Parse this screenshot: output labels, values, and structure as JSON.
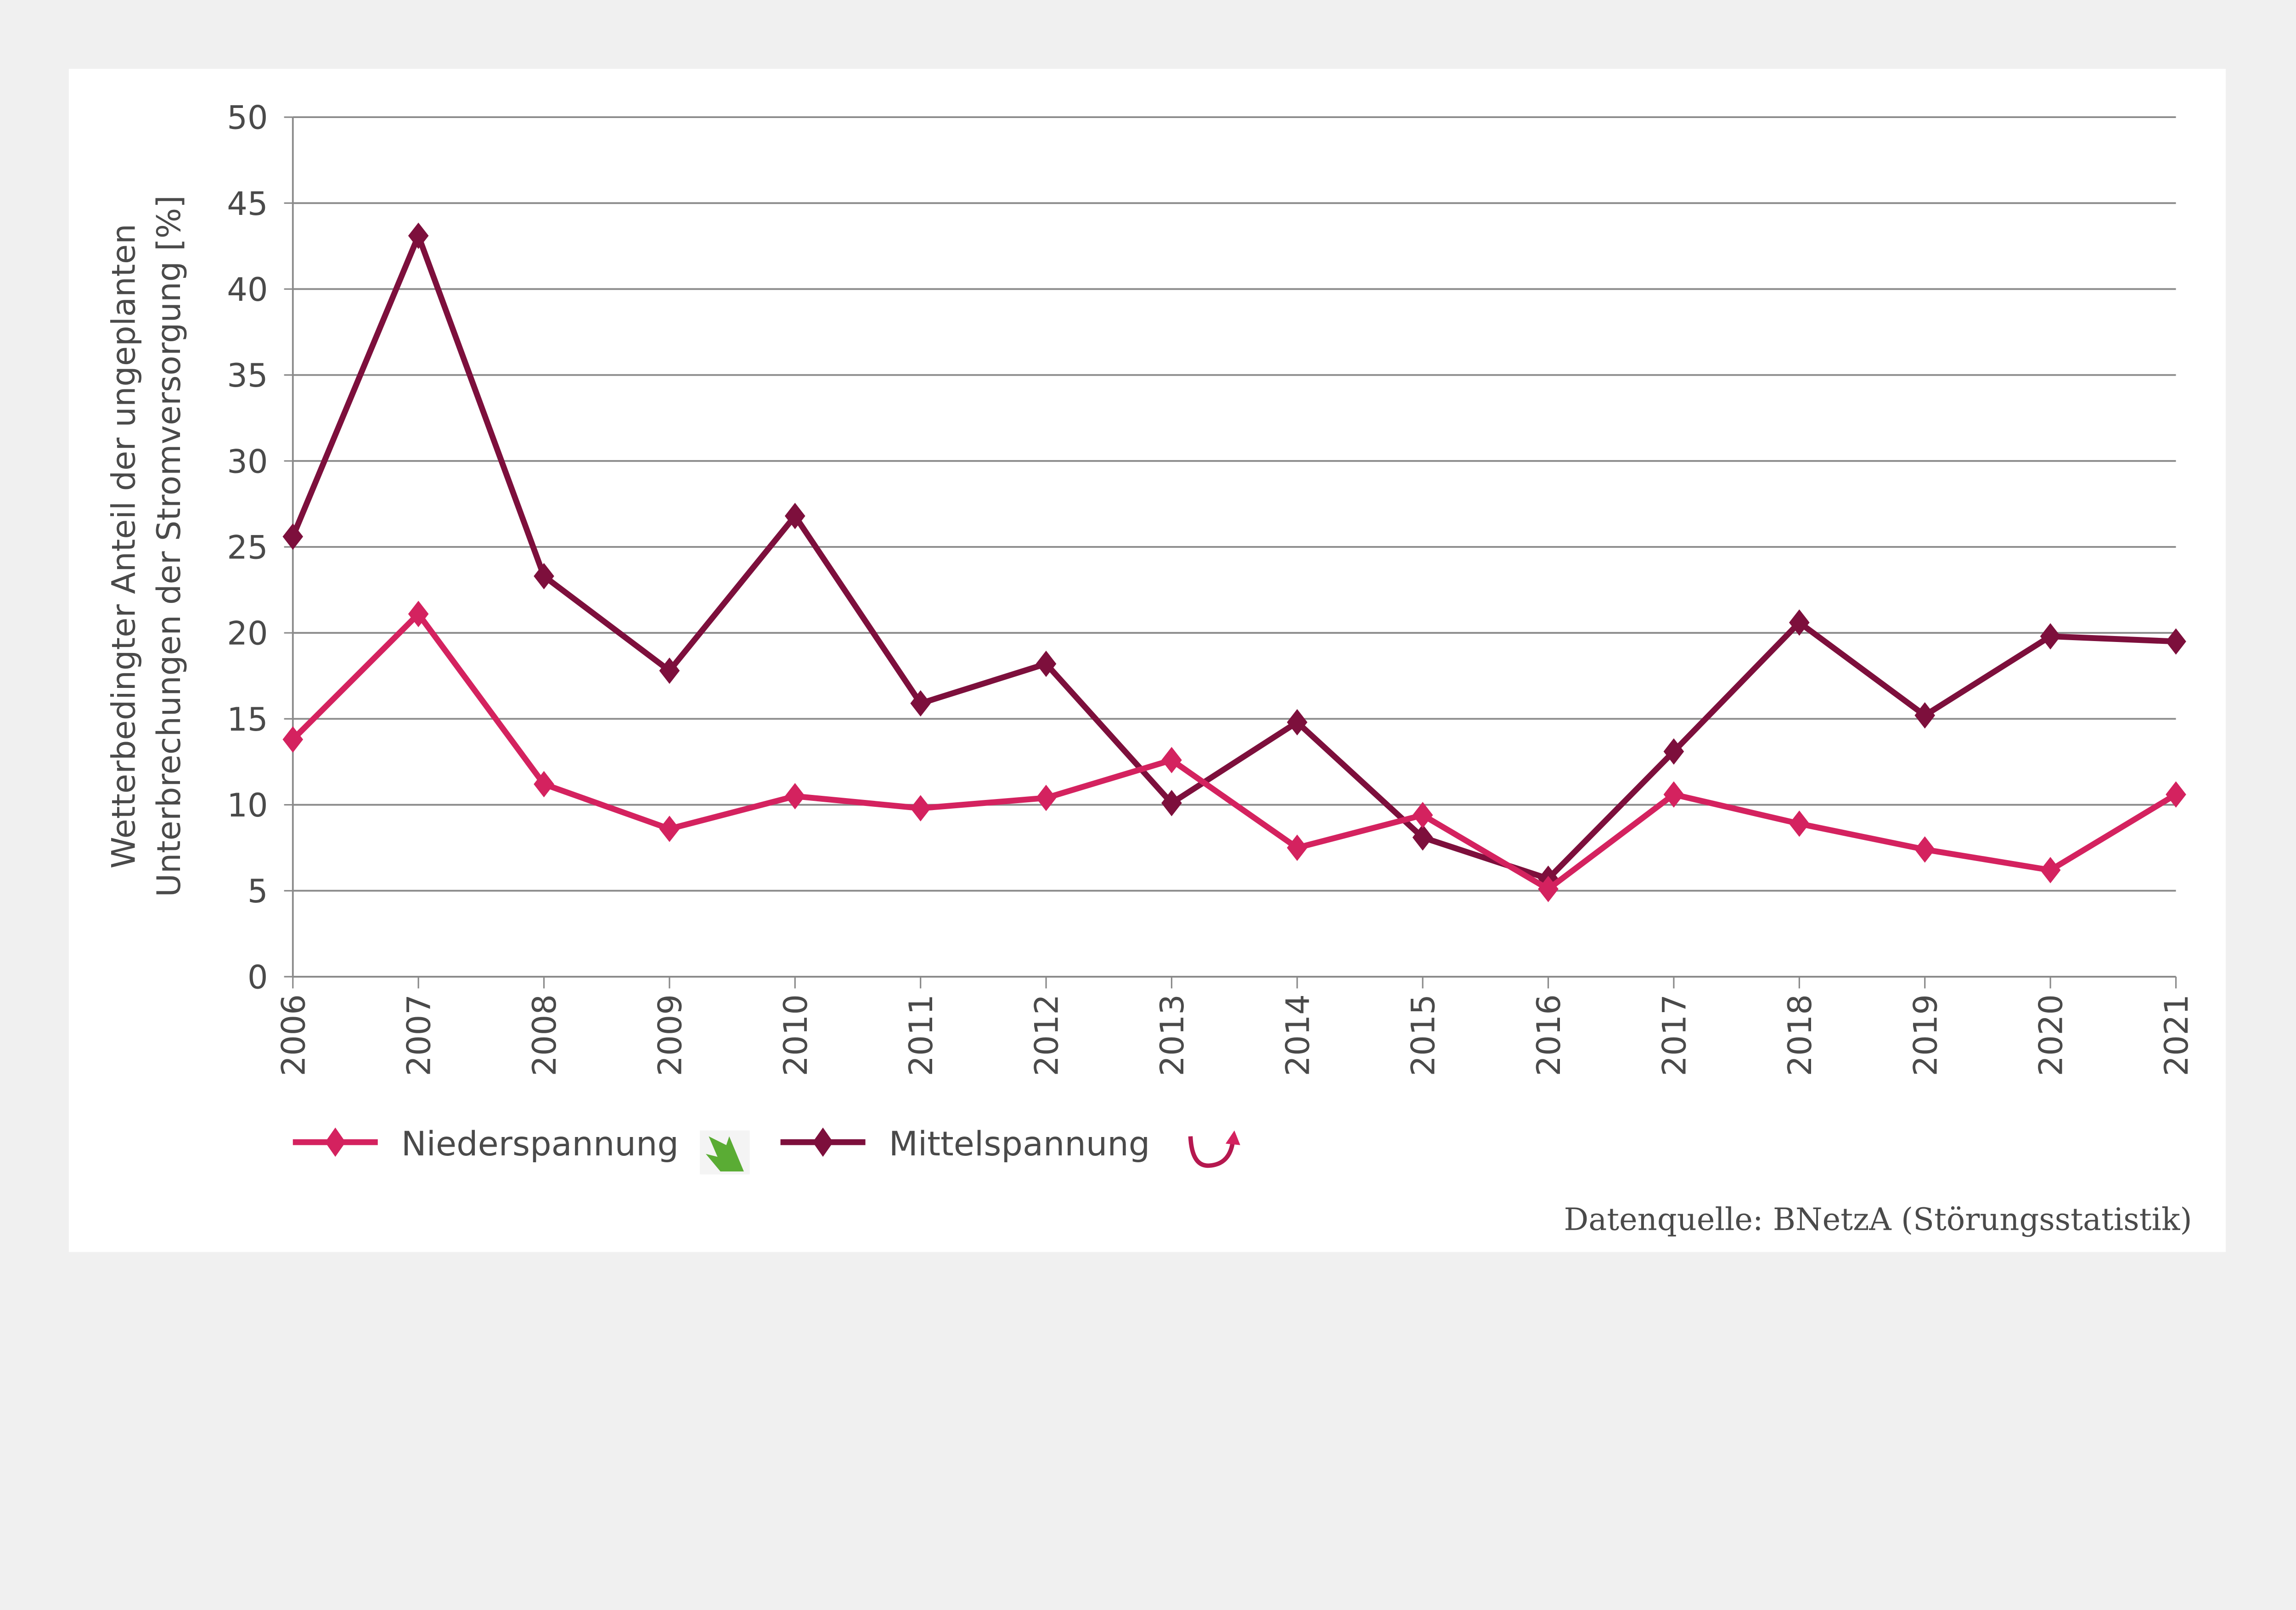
{
  "chart_data": {
    "type": "line",
    "title": "",
    "xlabel": "",
    "ylabel": [
      "Wetterbedingter Anteil der ungeplanten",
      "Unterbrechungen der Stromversorgung  [%]"
    ],
    "ylim": [
      0,
      50
    ],
    "yticks": [
      "0",
      "5",
      "10",
      "15",
      "20",
      "25",
      "30",
      "35",
      "40",
      "45",
      "50"
    ],
    "categories": [
      "2006",
      "2007",
      "2008",
      "2009",
      "2010",
      "2011",
      "2012",
      "2013",
      "2014",
      "2015",
      "2016",
      "2017",
      "2018",
      "2019",
      "2020",
      "2021"
    ],
    "grid": true,
    "legend_position": "bottom-left",
    "series": [
      {
        "name": "Niederspannung",
        "color": "#d4225f",
        "marker": "diamond",
        "trend_icon": "green-down-arrow-icon",
        "values": [
          13.8,
          21.1,
          11.2,
          8.6,
          10.5,
          9.8,
          10.4,
          12.6,
          7.5,
          9.4,
          5.1,
          10.6,
          8.9,
          7.4,
          6.2,
          10.6
        ]
      },
      {
        "name": "Mittelspannung",
        "color": "#7d0f3c",
        "marker": "diamond",
        "trend_icon": "u-turn-arrow-icon",
        "values": [
          25.6,
          43.1,
          23.3,
          17.8,
          26.8,
          15.9,
          18.2,
          10.1,
          14.8,
          8.1,
          5.7,
          13.1,
          20.6,
          15.2,
          19.8,
          19.5
        ]
      }
    ],
    "source": "Datenquelle: BNetzA (Störungsstatistik)"
  }
}
